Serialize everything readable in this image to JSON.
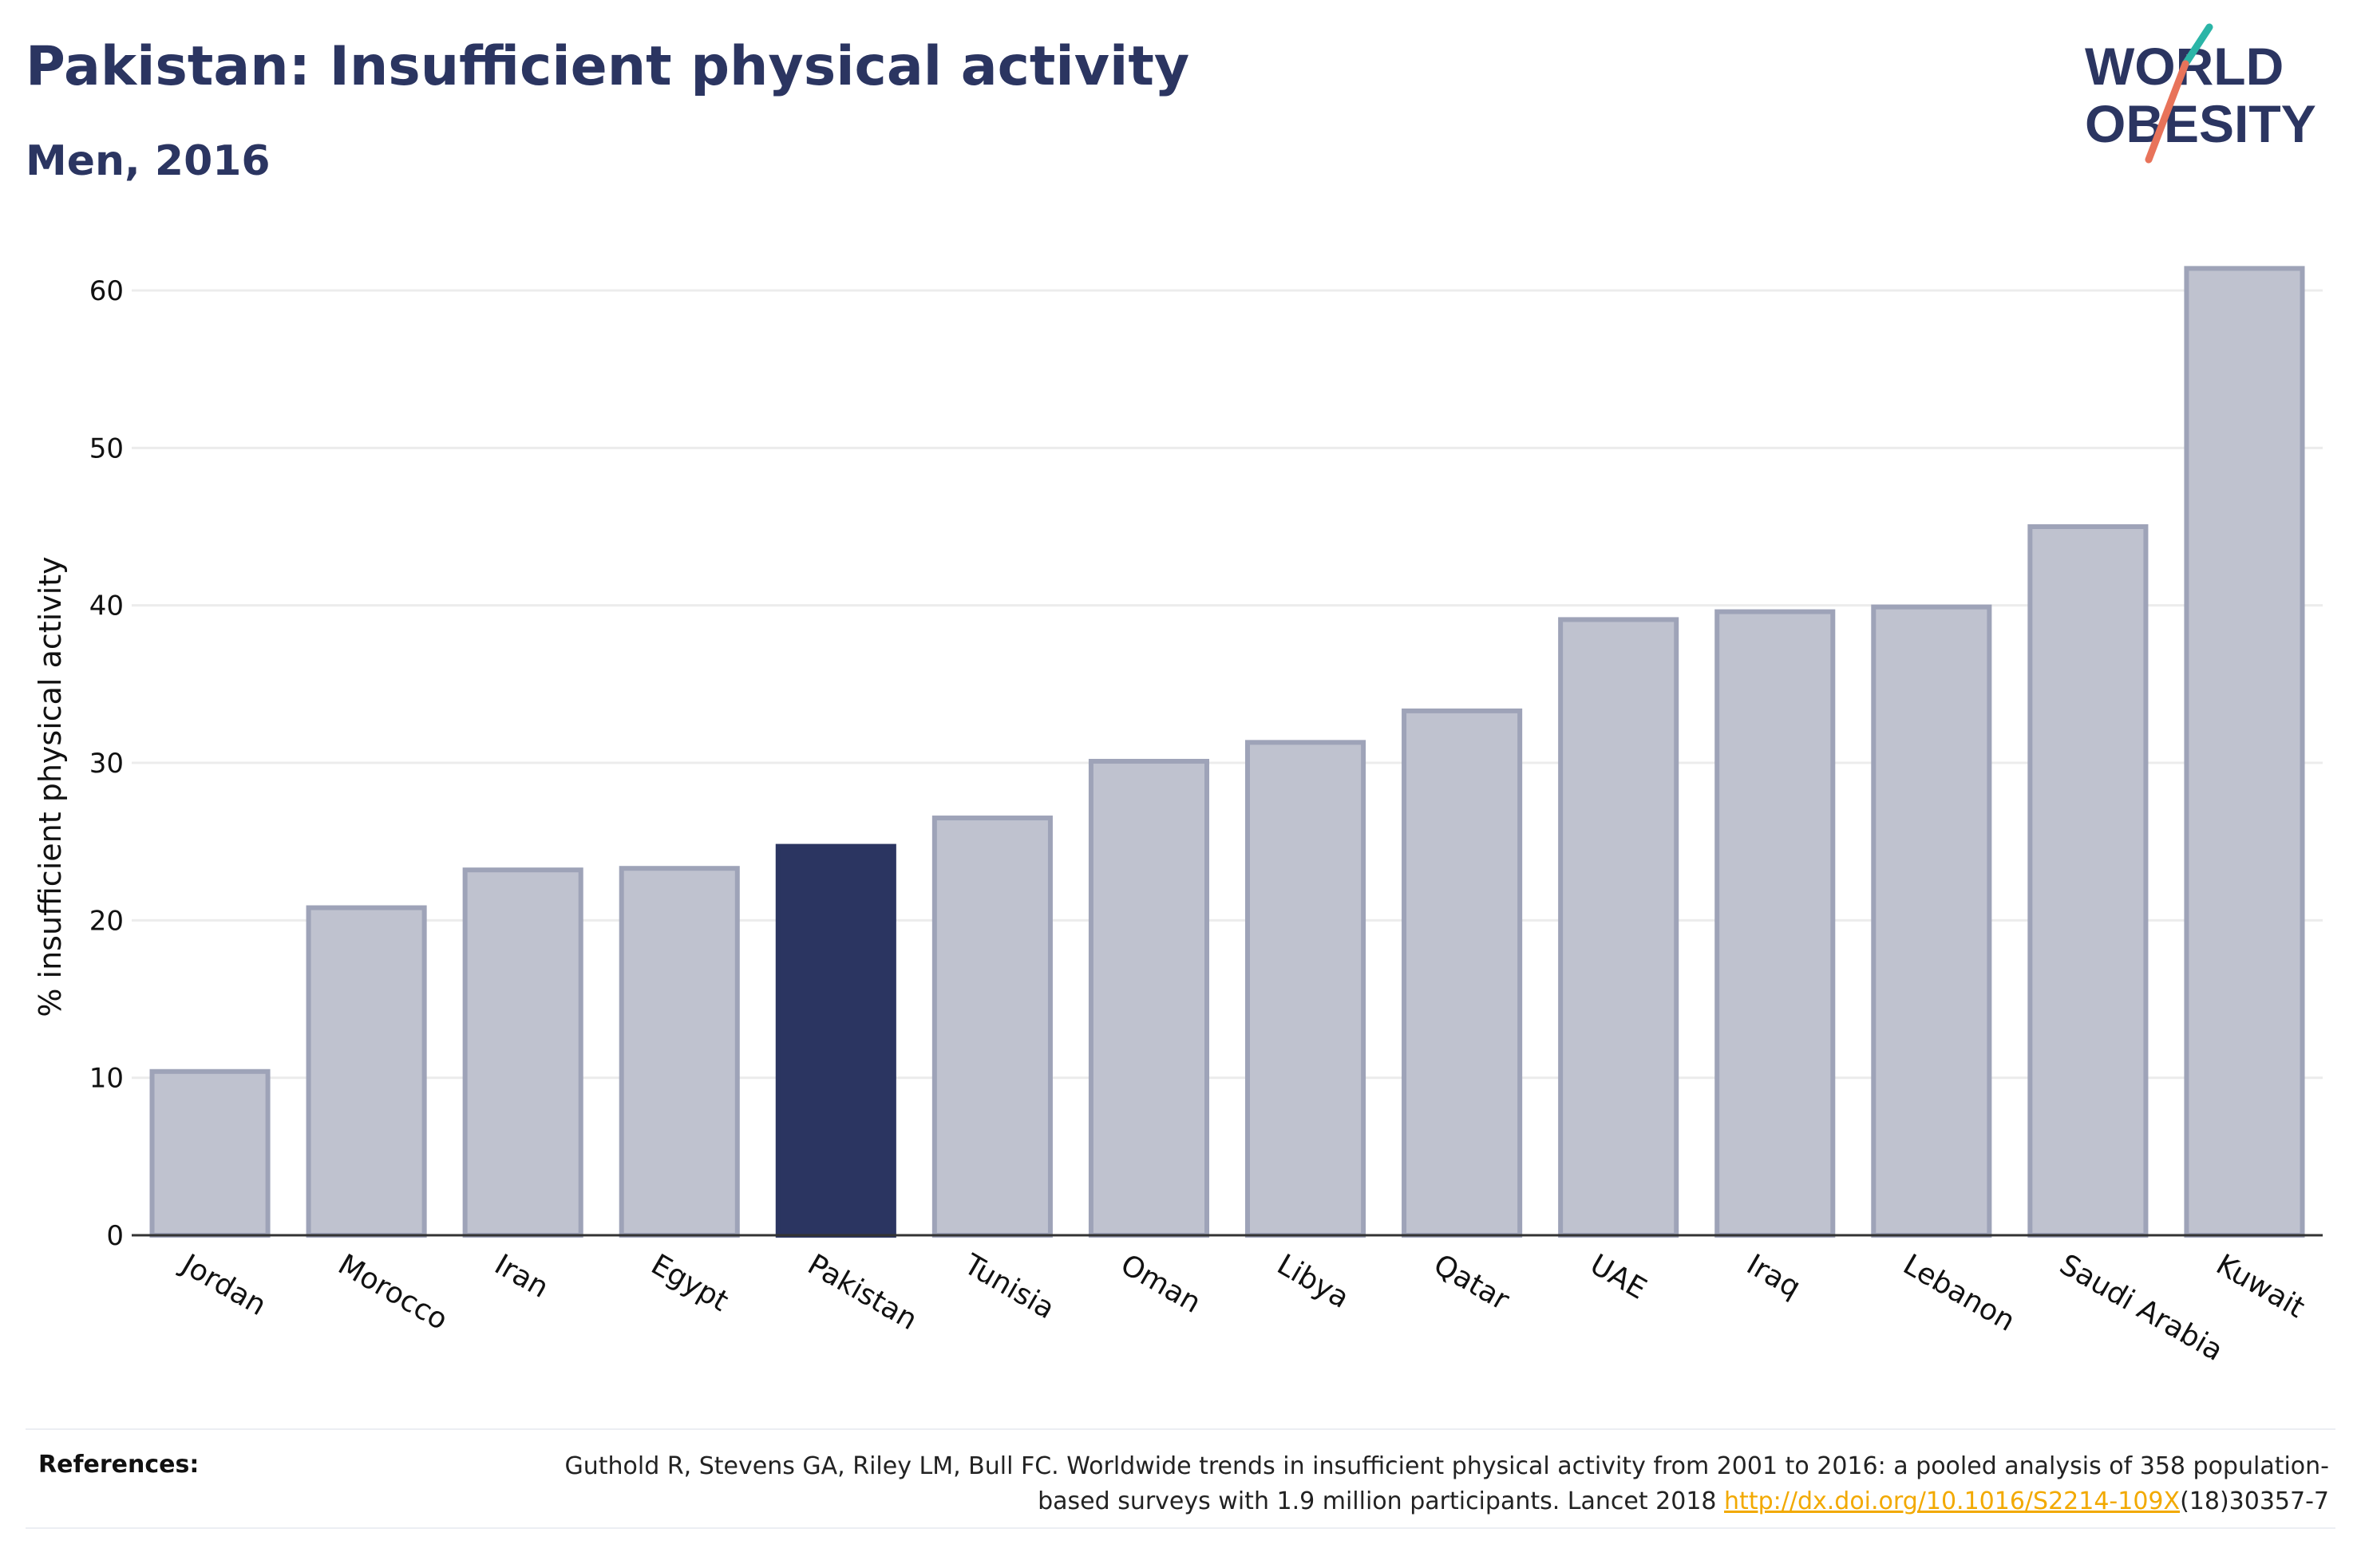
{
  "header": {
    "title": "Pakistan: Insufficient physical activity",
    "subtitle": "Men, 2016"
  },
  "logo": {
    "line1": "WORLD",
    "line2": "OBESITY",
    "colors": {
      "text": "#2b3561",
      "teal": "#2bb5a7",
      "coral": "#e8735a"
    }
  },
  "chart_data": {
    "type": "bar",
    "ylabel": "% insufficient physical activity",
    "xlabel": "",
    "ylim": [
      0,
      64
    ],
    "yticks": [
      0,
      10,
      20,
      30,
      40,
      50,
      60
    ],
    "grid": true,
    "highlight": "Pakistan",
    "colors": {
      "bar": "#bfc2cf",
      "bar_border": "#9ea3b8",
      "highlight": "#2b3561",
      "grid": "#ececec",
      "axis": "#333333"
    },
    "categories": [
      "Jordan",
      "Morocco",
      "Iran",
      "Egypt",
      "Pakistan",
      "Tunisia",
      "Oman",
      "Libya",
      "Qatar",
      "UAE",
      "Iraq",
      "Lebanon",
      "Saudi Arabia",
      "Kuwait"
    ],
    "values": [
      10.4,
      20.8,
      23.2,
      23.3,
      24.7,
      26.5,
      30.1,
      31.3,
      33.3,
      39.1,
      39.6,
      39.9,
      45.0,
      61.4
    ]
  },
  "references": {
    "label": "References:",
    "text_part1": "Guthold R, Stevens GA, Riley LM, Bull FC. Worldwide trends in insufficient physical activity from 2001 to 2016: a pooled analysis of 358 population-based surveys with 1.9 million participants. Lancet 2018 ",
    "link_text": "http://dx.doi.org/10.1016/S2214-109X",
    "text_part2": "(18)30357-7"
  }
}
